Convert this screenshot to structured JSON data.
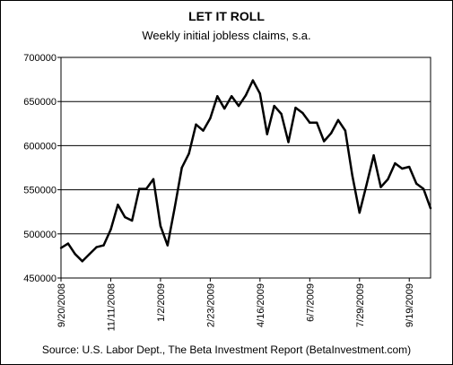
{
  "chart_data": {
    "type": "line",
    "title": "LET IT ROLL",
    "subtitle": "Weekly initial jobless claims, s.a.",
    "source": "Source: U.S. Labor Dept., The Beta Investment Report (BetaInvestment.com)",
    "ylim": [
      450000,
      700000
    ],
    "yticks": [
      "700000",
      "650000",
      "600000",
      "550000",
      "500000",
      "450000"
    ],
    "xticks": [
      "9/20/2008",
      "11/11/2008",
      "1/2/2009",
      "2/23/2009",
      "4/16/2009",
      "6/7/2009",
      "7/29/2009",
      "9/19/2009"
    ],
    "grid": true,
    "legend": "none",
    "line_color": "#000000",
    "series": [
      {
        "values": [
          484000,
          489000,
          477000,
          469000,
          477000,
          485000,
          487000,
          505000,
          533000,
          519000,
          515000,
          551000,
          551000,
          562000,
          509000,
          487000,
          530000,
          575000,
          591000,
          624000,
          617000,
          631000,
          656000,
          642000,
          656000,
          645000,
          657000,
          674000,
          659000,
          613000,
          645000,
          636000,
          604000,
          643000,
          637000,
          626000,
          626000,
          605000,
          614000,
          629000,
          617000,
          566000,
          524000,
          556000,
          589000,
          553000,
          562000,
          580000,
          574000,
          576000,
          557000,
          551000,
          529000
        ]
      }
    ]
  }
}
